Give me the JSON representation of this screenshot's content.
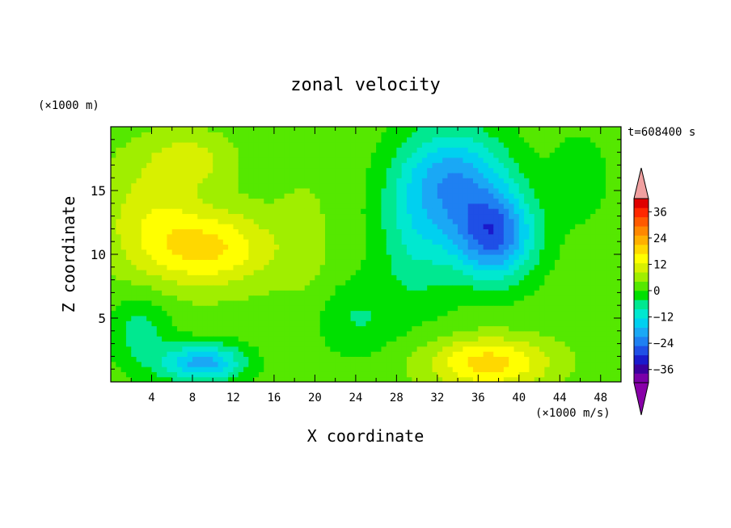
{
  "chart_data": {
    "type": "heatmap",
    "title": "zonal velocity",
    "xlabel": "X coordinate",
    "ylabel": "Z coordinate",
    "x_units": "(×1000 m/s)",
    "y_units": "(×1000 m)",
    "time_label": "t=608400 s",
    "xlim": [
      0,
      50
    ],
    "ylim": [
      0,
      20
    ],
    "x_ticks": [
      "4",
      "8",
      "12",
      "16",
      "20",
      "24",
      "28",
      "32",
      "36",
      "40",
      "44",
      "48"
    ],
    "y_ticks": [
      "5",
      "10",
      "15"
    ],
    "colorbar": {
      "min": -42,
      "max": 42,
      "step": 4,
      "tick_labels": [
        "36",
        "24",
        "12",
        "0",
        "−12",
        "−24",
        "−36"
      ],
      "tick_values": [
        36,
        24,
        12,
        0,
        -12,
        -24,
        -36
      ],
      "colors": [
        "#7a00a8",
        "#3b009e",
        "#1a1acc",
        "#1f4fe6",
        "#1f80f2",
        "#1aa8f5",
        "#00d0f0",
        "#00e8d0",
        "#00e890",
        "#00e000",
        "#55e800",
        "#a0ee00",
        "#d8f000",
        "#ffff00",
        "#ffd800",
        "#ffb000",
        "#ff8800",
        "#ff5a00",
        "#ff2800",
        "#e00000"
      ],
      "under_color": "#8800a8",
      "over_color": "#f0a0a0"
    },
    "features": [
      {
        "x": 10,
        "z": 10.5,
        "value": 14,
        "sx": 6,
        "sz": 3
      },
      {
        "x": 4,
        "z": 13,
        "value": 8,
        "sx": 5,
        "sz": 5
      },
      {
        "x": 8,
        "z": 17.5,
        "value": 7,
        "sx": 4,
        "sz": 2
      },
      {
        "x": 19,
        "z": 11,
        "value": 3,
        "sx": 3,
        "sz": 6
      },
      {
        "x": 37.5,
        "z": 11.5,
        "value": -26,
        "sx": 4,
        "sz": 3.5
      },
      {
        "x": 34,
        "z": 16,
        "value": -18,
        "sx": 5,
        "sz": 4
      },
      {
        "x": 30,
        "z": 12,
        "value": -10,
        "sx": 4,
        "sz": 6
      },
      {
        "x": 37,
        "z": 1.5,
        "value": 16,
        "sx": 6,
        "sz": 2
      },
      {
        "x": 9,
        "z": 1.5,
        "value": -20,
        "sx": 4,
        "sz": 1.5
      },
      {
        "x": 24,
        "z": 5,
        "value": -6,
        "sx": 4,
        "sz": 3
      },
      {
        "x": 3,
        "z": 4,
        "value": -8,
        "sx": 3,
        "sz": 3
      },
      {
        "x": 46,
        "z": 16,
        "value": -4,
        "sx": 3,
        "sz": 4
      }
    ]
  }
}
